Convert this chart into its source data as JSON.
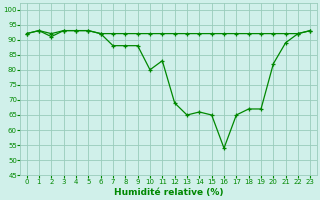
{
  "xlabel": "Humidité relative (%)",
  "xlim": [
    -0.5,
    23.5
  ],
  "ylim": [
    45,
    102
  ],
  "yticks": [
    45,
    50,
    55,
    60,
    65,
    70,
    75,
    80,
    85,
    90,
    95,
    100
  ],
  "xticks": [
    0,
    1,
    2,
    3,
    4,
    5,
    6,
    7,
    8,
    9,
    10,
    11,
    12,
    13,
    14,
    15,
    16,
    17,
    18,
    19,
    20,
    21,
    22,
    23
  ],
  "bg_color": "#d0f0ea",
  "grid_color": "#99ccbb",
  "line_color": "#008800",
  "line1_flat": [
    92,
    93,
    92,
    93,
    93,
    93,
    92,
    92,
    92,
    92,
    92,
    92,
    92,
    92,
    92,
    92,
    92,
    92,
    92,
    92,
    92,
    92,
    92,
    93
  ],
  "line2_varying": [
    92,
    93,
    91,
    93,
    93,
    93,
    92,
    88,
    88,
    88,
    80,
    83,
    69,
    65,
    66,
    65,
    54,
    65,
    67,
    67,
    82,
    89,
    92,
    93
  ]
}
